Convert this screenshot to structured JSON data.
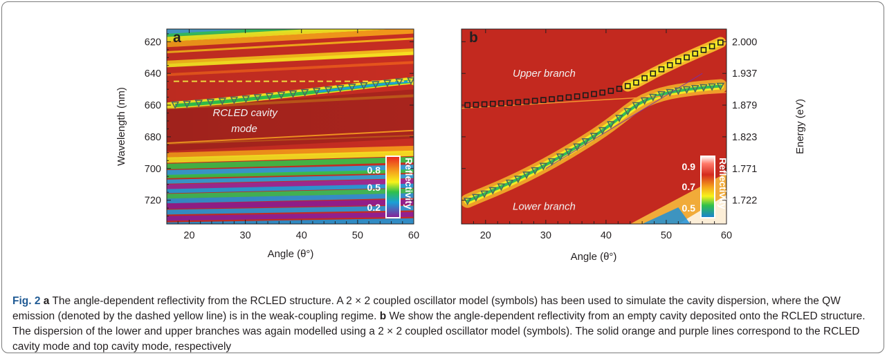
{
  "chart_data": [
    {
      "type": "heatmap",
      "panel_label": "a",
      "xlabel": "Angle (θ°)",
      "ylabel": "Wavelength (nm)",
      "xlim": [
        16,
        60
      ],
      "ylim": [
        612,
        735
      ],
      "y_inverted": true,
      "xticks": [
        20,
        30,
        40,
        50,
        60
      ],
      "yticks": [
        620,
        640,
        660,
        680,
        700,
        720
      ],
      "colorbar": {
        "label": "Reflectivity",
        "ticks": [
          "0.8",
          "0.5",
          "0.2"
        ],
        "range": [
          0.2,
          0.9
        ]
      },
      "annotations": [
        {
          "text": "RCLED cavity",
          "x": 24.2,
          "y": 667
        },
        {
          "text": "mode",
          "x": 27.5,
          "y": 677
        }
      ],
      "qw_emission_line": {
        "style": "dashed",
        "color": "#f5e142",
        "y": 645
      },
      "series": [
        {
          "marker": "triangle-down",
          "x": [
            17.5,
            19.6,
            21.7,
            23.8,
            25.9,
            28.0,
            30.1,
            32.2,
            34.3,
            36.4,
            38.5,
            40.6,
            42.7,
            44.8,
            46.9,
            49.0,
            51.1,
            53.2,
            55.3,
            57.4,
            59.5
          ],
          "y": [
            659.8,
            659.3,
            658.7,
            658.1,
            657.4,
            656.7,
            656.0,
            655.2,
            654.4,
            653.6,
            652.8,
            652.0,
            651.1,
            650.3,
            649.4,
            648.6,
            647.7,
            646.9,
            646.1,
            645.3,
            644.6
          ]
        }
      ]
    },
    {
      "type": "heatmap",
      "panel_label": "b",
      "xlabel": "Angle (θ°)",
      "ylabel": "Energy (eV)",
      "xlim": [
        16,
        60
      ],
      "y_inverted": true,
      "xticks": [
        20,
        30,
        40,
        50,
        60
      ],
      "yticks_right": [
        "2.000",
        "1.937",
        "1.879",
        "1.823",
        "1.771",
        "1.722"
      ],
      "colorbar": {
        "label": "Reflectivity",
        "ticks": [
          "0.9",
          "0.7",
          "0.5"
        ],
        "range": [
          0.45,
          0.95
        ]
      },
      "annotations": [
        {
          "text": "Upper branch",
          "x": 24.5,
          "y": 642
        },
        {
          "text": "Lower branch",
          "x": 24.5,
          "y": 726
        }
      ],
      "series": [
        {
          "name": "Upper branch",
          "marker": "square",
          "x": [
            17,
            18.4,
            19.8,
            21.2,
            22.6,
            24.0,
            25.4,
            26.8,
            28.2,
            29.6,
            31.0,
            32.4,
            33.8,
            35.2,
            36.6,
            38.0,
            39.4,
            40.8,
            42.2,
            43.6,
            45.0,
            46.4,
            47.8,
            49.2,
            50.6,
            52.0,
            53.4,
            54.8,
            56.2,
            57.6,
            59.0
          ],
          "y": [
            660.0,
            659.8,
            659.5,
            659.2,
            658.9,
            658.6,
            658.2,
            657.8,
            657.3,
            656.8,
            656.3,
            655.7,
            655.1,
            654.5,
            653.8,
            653.0,
            652.1,
            651.0,
            649.7,
            648.0,
            645.8,
            643.0,
            640.1,
            637.4,
            634.8,
            632.3,
            629.9,
            627.5,
            625.2,
            622.9,
            620.5
          ]
        },
        {
          "name": "Lower branch",
          "marker": "triangle-down",
          "x": [
            17,
            18.4,
            19.8,
            21.2,
            22.6,
            24.0,
            25.4,
            26.8,
            28.2,
            29.6,
            31.0,
            32.4,
            33.8,
            35.2,
            36.6,
            38.0,
            39.4,
            40.8,
            42.2,
            43.6,
            45.0,
            46.4,
            47.8,
            49.2,
            50.6,
            52.0,
            53.4,
            54.8,
            56.2,
            57.6,
            59.0
          ],
          "y": [
            720.5,
            718.2,
            716.0,
            713.8,
            711.5,
            709.1,
            706.6,
            704.0,
            701.3,
            698.5,
            695.6,
            692.6,
            689.5,
            686.3,
            683.0,
            679.6,
            676.0,
            672.2,
            668.2,
            664.0,
            660.2,
            657.2,
            655.0,
            653.3,
            652.0,
            651.0,
            650.2,
            649.5,
            648.9,
            648.4,
            648.0
          ]
        }
      ]
    }
  ],
  "caption": {
    "figure_label": "Fig. 2",
    "label_a": "a",
    "text_a": " The angle-dependent reflectivity from the RCLED structure. A 2 × 2 coupled oscillator model (symbols) has been used to simulate the cavity dispersion, where the QW emission (denoted by the dashed yellow line) is in the weak-coupling regime. ",
    "label_b": "b",
    "text_b": " We show the angle-dependent reflectivity from an empty cavity deposited onto the RCLED structure. The dispersion of the lower and upper branches was again modelled using a 2 × 2 coupled oscillator model (symbols). The solid orange and purple lines correspond to the RCLED cavity mode and top cavity mode, respectively"
  }
}
